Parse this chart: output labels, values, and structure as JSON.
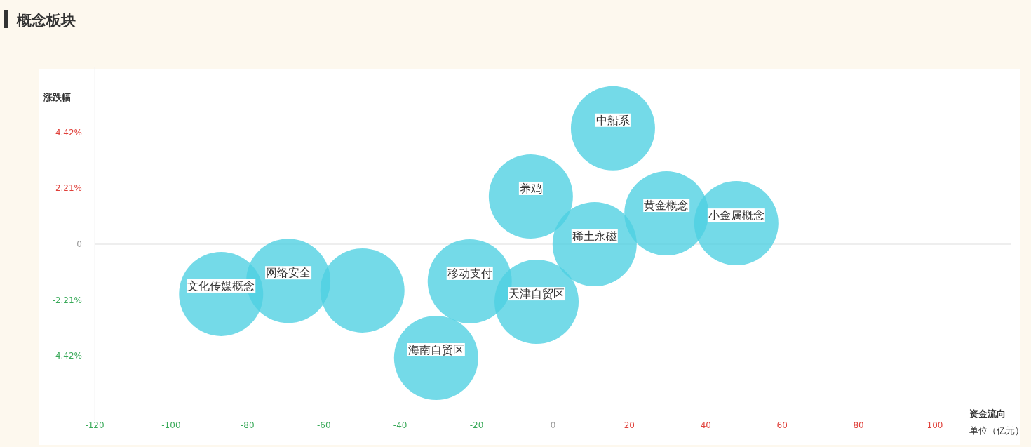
{
  "chart_data": {
    "type": "bubble",
    "title": "概念板块",
    "xlabel": "资金流向",
    "ylabel": "涨跌幅",
    "annotations": [
      "单位（亿元）"
    ],
    "xlim": [
      -120,
      100
    ],
    "xticks": [
      -120,
      -100,
      -80,
      -60,
      -40,
      -20,
      0,
      20,
      40,
      60,
      80,
      100
    ],
    "ylim": [
      -7,
      7
    ],
    "ref_lines": [
      {
        "axis": "y",
        "value": 0,
        "color": "#eeeeee"
      }
    ],
    "yticks": [
      {
        "value": -4.42,
        "label": "-4.42%"
      },
      {
        "value": -2.21,
        "label": "-2.21%"
      },
      0,
      {
        "value": 2.21,
        "label": "2.21%"
      },
      {
        "value": 4.42,
        "label": "4.42%"
      }
    ],
    "grid": false,
    "legend": false,
    "marker": "circle",
    "series": [
      {
        "name": "中船系",
        "color": "#4dd0e1",
        "x": [
          15.7
        ],
        "values": [
          4.59
        ],
        "sizes": [
          1
        ]
      },
      {
        "name": "养鸡",
        "color": "#4dd0e1",
        "x": [
          -5.8
        ],
        "values": [
          1.89
        ],
        "sizes": [
          1
        ]
      },
      {
        "name": "黄金概念",
        "color": "#4dd0e1",
        "x": [
          29.7
        ],
        "values": [
          1.22
        ],
        "sizes": [
          1
        ]
      },
      {
        "name": "小金属概念",
        "color": "#4dd0e1",
        "x": [
          48.0
        ],
        "values": [
          0.83
        ],
        "sizes": [
          1
        ]
      },
      {
        "name": "稀土永磁",
        "color": "#4dd0e1",
        "x": [
          10.9
        ],
        "values": [
          0.0
        ],
        "sizes": [
          1
        ]
      },
      {
        "name": "移动支付",
        "color": "#4dd0e1",
        "x": [
          -21.8
        ],
        "values": [
          -1.47
        ],
        "sizes": [
          1
        ]
      },
      {
        "name": "天津自贸区",
        "color": "#4dd0e1",
        "x": [
          -4.3
        ],
        "values": [
          -2.28
        ],
        "sizes": [
          1
        ]
      },
      {
        "name": "海南自贸区",
        "color": "#4dd0e1",
        "x": [
          -30.6
        ],
        "values": [
          -4.5
        ],
        "sizes": [
          1
        ]
      },
      {
        "color": "#4dd0e1",
        "x": [
          -49.9
        ],
        "values": [
          -1.83
        ],
        "sizes": [
          1
        ]
      },
      {
        "name": "网络安全",
        "color": "#4dd0e1",
        "x": [
          -69.3
        ],
        "values": [
          -1.45
        ],
        "sizes": [
          1
        ]
      },
      {
        "name": "文化传媒概念",
        "color": "#4dd0e1",
        "x": [
          -86.9
        ],
        "values": [
          -1.97
        ],
        "sizes": [
          1
        ]
      }
    ]
  }
}
